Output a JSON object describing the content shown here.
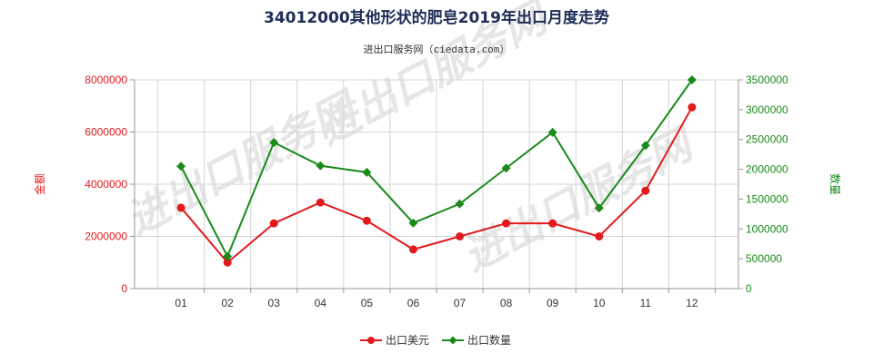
{
  "chart_data": {
    "type": "line",
    "title": "34012000其他形状的肥皂2019年出口月度走势",
    "subtitle": "进出口服务网（ciedata.com）",
    "categories": [
      "01",
      "02",
      "03",
      "04",
      "05",
      "06",
      "07",
      "08",
      "09",
      "10",
      "11",
      "12"
    ],
    "y_left": {
      "label": "金额",
      "ylim": [
        0,
        8000000
      ],
      "ticks": [
        "0",
        "2000000",
        "4000000",
        "6000000",
        "8000000"
      ]
    },
    "y_right": {
      "label": "数量",
      "ylim": [
        0,
        3500000
      ],
      "ticks": [
        "0",
        "500000",
        "1000000",
        "1500000",
        "2000000",
        "2500000",
        "3000000",
        "3500000"
      ]
    },
    "series": [
      {
        "name": "出口美元",
        "axis": "left",
        "color": "#e31a1c",
        "values": [
          3100000,
          1000000,
          2500000,
          3300000,
          2600000,
          1500000,
          2000000,
          2500000,
          2500000,
          2000000,
          3750000,
          6950000
        ]
      },
      {
        "name": "出口数量",
        "axis": "right",
        "color": "#1a8a1a",
        "values": [
          2050000,
          540000,
          2450000,
          2060000,
          1950000,
          1100000,
          1420000,
          2020000,
          2620000,
          1350000,
          2400000,
          3500000
        ]
      }
    ],
    "grid": true,
    "legend": "bottom"
  },
  "watermark": "进出口服务网"
}
